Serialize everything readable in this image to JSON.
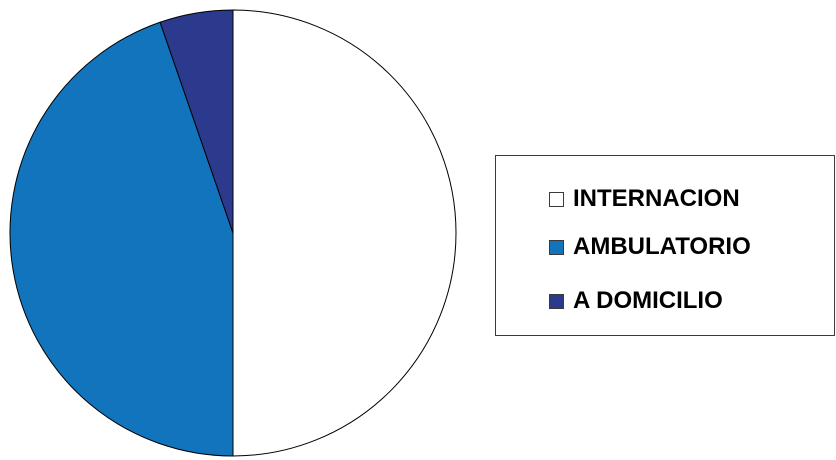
{
  "chart_data": {
    "type": "pie",
    "categories": [
      "INTERNACION",
      "AMBULATORIO",
      "A DOMICILIO"
    ],
    "values": [
      50.0,
      44.7,
      5.3
    ],
    "colors": [
      "#ffffff",
      "#1174bd",
      "#2c3a8e"
    ],
    "outline_color": "#000000",
    "start": "12 o'clock",
    "direction": "clockwise",
    "legend_placement": "right"
  },
  "legend": {
    "items": [
      {
        "label": "INTERNACION",
        "color": "#ffffff"
      },
      {
        "label": "AMBULATORIO",
        "color": "#1174bd"
      },
      {
        "label": "A DOMICILIO",
        "color": "#2c3a8e"
      }
    ]
  }
}
